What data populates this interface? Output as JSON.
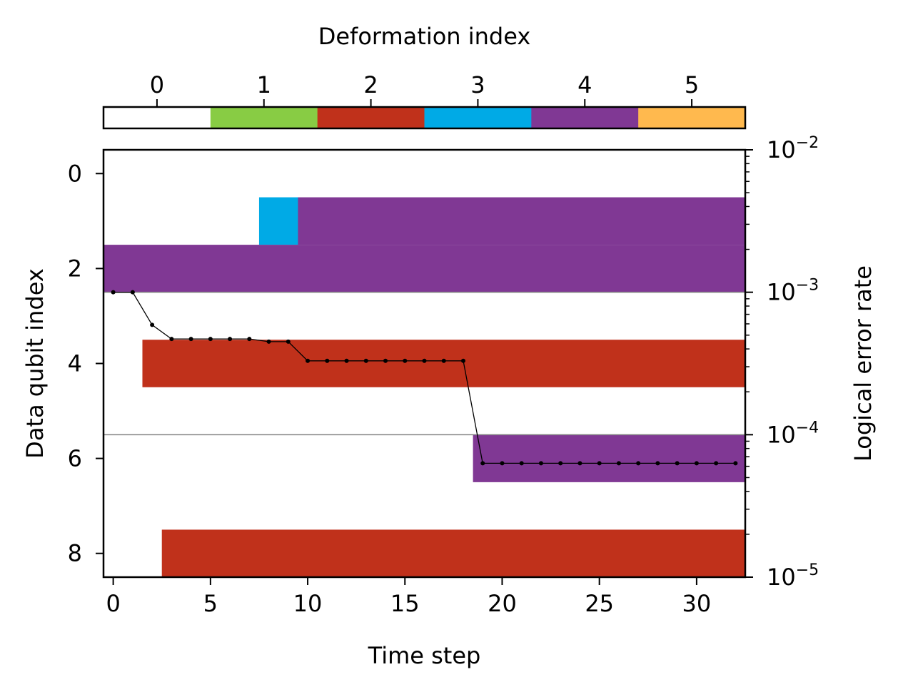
{
  "chart_data": {
    "type": "heatmap",
    "colorbar": {
      "label": "Deformation index",
      "ticks": [
        "0",
        "1",
        "2",
        "3",
        "4",
        "5"
      ],
      "colors": [
        "#ffffff",
        "#88cc44",
        "#c0311b",
        "#00aae6",
        "#803894",
        "#ffb94e"
      ]
    },
    "heatmap": {
      "xlabel": "Time step",
      "ylabel": "Data qubit index",
      "xlim": [
        -0.5,
        32.5
      ],
      "ylim": [
        8.5,
        -0.5
      ],
      "xticks": [
        0,
        5,
        10,
        15,
        20,
        25,
        30
      ],
      "yticks": [
        0,
        2,
        4,
        6,
        8
      ],
      "row_separators": [
        2.5,
        5.5
      ],
      "cells": [
        {
          "qubit": 1,
          "t_start": 8,
          "t_end": 9,
          "deformation": 3
        },
        {
          "qubit": 1,
          "t_start": 10,
          "t_end": 32,
          "deformation": 4
        },
        {
          "qubit": 2,
          "t_start": 0,
          "t_end": 32,
          "deformation": 4
        },
        {
          "qubit": 4,
          "t_start": 2,
          "t_end": 32,
          "deformation": 2
        },
        {
          "qubit": 6,
          "t_start": 19,
          "t_end": 32,
          "deformation": 4
        },
        {
          "qubit": 8,
          "t_start": 3,
          "t_end": 32,
          "deformation": 2
        }
      ]
    },
    "error_rate": {
      "ylabel": "Logical error rate",
      "yscale": "log",
      "ylim": [
        1e-05,
        0.01
      ],
      "ytick_labels": [
        {
          "value": 1e-05,
          "base": "10",
          "exp": "−5"
        },
        {
          "value": 0.0001,
          "base": "10",
          "exp": "−4"
        },
        {
          "value": 0.001,
          "base": "10",
          "exp": "−3"
        },
        {
          "value": 0.01,
          "base": "10",
          "exp": "−2"
        }
      ],
      "x": [
        0,
        1,
        2,
        3,
        4,
        5,
        6,
        7,
        8,
        9,
        10,
        11,
        12,
        13,
        14,
        15,
        16,
        17,
        18,
        19,
        20,
        21,
        22,
        23,
        24,
        25,
        26,
        27,
        28,
        29,
        30,
        31,
        32
      ],
      "y": [
        0.001,
        0.001,
        0.00059,
        0.00047,
        0.00047,
        0.00047,
        0.00047,
        0.00047,
        0.00045,
        0.00045,
        0.00033,
        0.00033,
        0.00033,
        0.00033,
        0.00033,
        0.00033,
        0.00033,
        0.00033,
        0.00033,
        6.3e-05,
        6.3e-05,
        6.3e-05,
        6.3e-05,
        6.3e-05,
        6.3e-05,
        6.3e-05,
        6.3e-05,
        6.3e-05,
        6.3e-05,
        6.3e-05,
        6.3e-05,
        6.3e-05,
        6.3e-05
      ]
    }
  }
}
